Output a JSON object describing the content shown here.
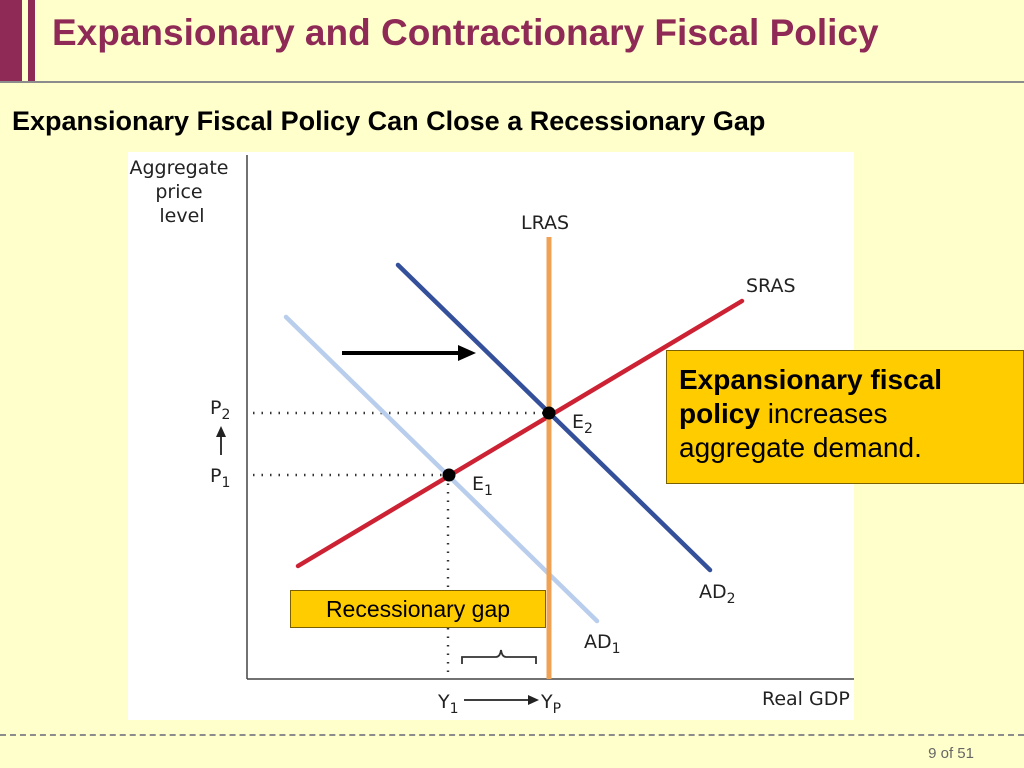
{
  "slide": {
    "title": "Expansionary and Contractionary Fiscal Policy",
    "subtitle": "Expansionary Fiscal Policy Can Close a Recessionary Gap",
    "page": "9 of 51"
  },
  "graph": {
    "y_axis_label": [
      "Aggregate",
      "price",
      "level"
    ],
    "x_axis_label": "Real GDP",
    "curves": {
      "lras": "LRAS",
      "sras": "SRAS",
      "ad1": "AD",
      "ad2": "AD"
    },
    "points": {
      "e1": "E",
      "e2": "E"
    },
    "price_levels": {
      "p1": "P",
      "p2": "P"
    },
    "output_levels": {
      "y1": "Y",
      "yp": "Y"
    },
    "subscripts": {
      "one": "1",
      "two": "2",
      "p": "P"
    },
    "colors": {
      "lras": "#f0a254",
      "sras": "#cc2233",
      "ad1": "#b9cdec",
      "ad2": "#34509a",
      "point": "#000000"
    }
  },
  "callout": {
    "bold_text": "Expansionary fiscal policy",
    "text": " increases aggregate demand."
  },
  "gap_label": "Recessionary gap"
}
